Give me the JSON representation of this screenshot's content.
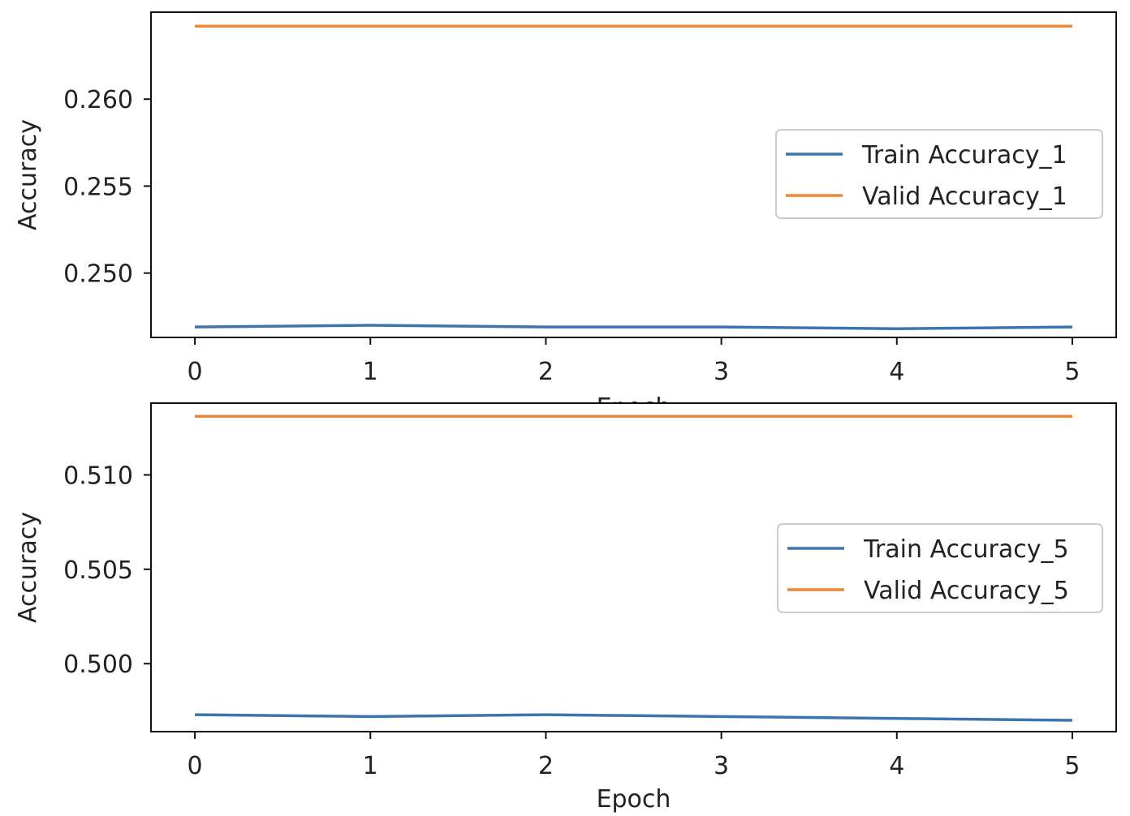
{
  "chart_data": [
    {
      "type": "line",
      "xlabel": "Epoch",
      "ylabel": "Accuracy",
      "x": [
        0,
        1,
        2,
        3,
        4,
        5
      ],
      "xticks": [
        "0",
        "1",
        "2",
        "3",
        "4",
        "5"
      ],
      "xlim": [
        -0.25,
        5.25
      ],
      "ylim": [
        0.2463,
        0.265
      ],
      "yticks": [
        "0.250",
        "0.255",
        "0.260"
      ],
      "grid": false,
      "legend": "center-right",
      "series": [
        {
          "name": "Train Accuracy_1",
          "color": "#3b75af",
          "values": [
            0.2469,
            0.247,
            0.2469,
            0.2469,
            0.2468,
            0.2469
          ]
        },
        {
          "name": "Valid Accuracy_1",
          "color": "#ef8636",
          "values": [
            0.2642,
            0.2642,
            0.2642,
            0.2642,
            0.2642,
            0.2642
          ]
        }
      ]
    },
    {
      "type": "line",
      "xlabel": "Epoch",
      "ylabel": "Accuracy",
      "x": [
        0,
        1,
        2,
        3,
        4,
        5
      ],
      "xticks": [
        "0",
        "1",
        "2",
        "3",
        "4",
        "5"
      ],
      "xlim": [
        -0.25,
        5.25
      ],
      "ylim": [
        0.4964,
        0.5138
      ],
      "yticks": [
        "0.500",
        "0.505",
        "0.510"
      ],
      "grid": false,
      "legend": "center-right",
      "series": [
        {
          "name": "Train Accuracy_5",
          "color": "#3b75af",
          "values": [
            0.4973,
            0.4972,
            0.4973,
            0.4972,
            0.4971,
            0.497
          ]
        },
        {
          "name": "Valid Accuracy_5",
          "color": "#ef8636",
          "values": [
            0.5131,
            0.5131,
            0.5131,
            0.5131,
            0.5131,
            0.5131
          ]
        }
      ]
    }
  ]
}
